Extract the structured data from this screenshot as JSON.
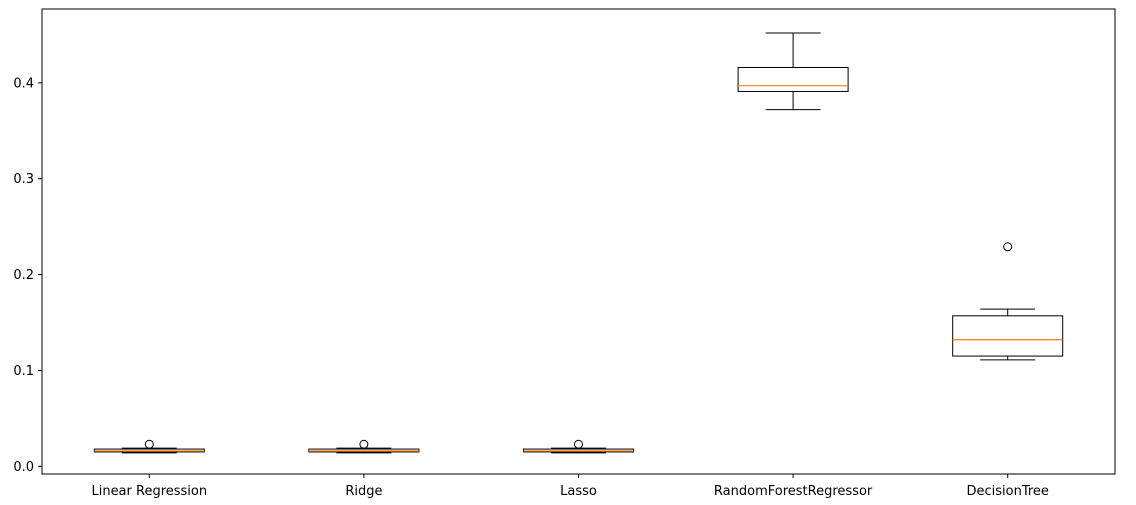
{
  "chart_data": {
    "type": "box",
    "title": "",
    "xlabel": "",
    "ylabel": "",
    "ylim": [
      -0.008,
      0.477
    ],
    "yticks": [
      0.0,
      0.1,
      0.2,
      0.3,
      0.4
    ],
    "ytick_labels": [
      "0.0",
      "0.1",
      "0.2",
      "0.3",
      "0.4"
    ],
    "categories": [
      "Linear Regression",
      "Ridge",
      "Lasso",
      "RandomForestRegressor",
      "DecisionTree"
    ],
    "boxes": [
      {
        "whisker_low": 0.014,
        "q1": 0.015,
        "median": 0.016,
        "q3": 0.018,
        "whisker_high": 0.019,
        "outliers": [
          0.023
        ]
      },
      {
        "whisker_low": 0.014,
        "q1": 0.015,
        "median": 0.016,
        "q3": 0.018,
        "whisker_high": 0.019,
        "outliers": [
          0.023
        ]
      },
      {
        "whisker_low": 0.014,
        "q1": 0.015,
        "median": 0.016,
        "q3": 0.018,
        "whisker_high": 0.019,
        "outliers": [
          0.023
        ]
      },
      {
        "whisker_low": 0.372,
        "q1": 0.391,
        "median": 0.397,
        "q3": 0.416,
        "whisker_high": 0.452,
        "outliers": []
      },
      {
        "whisker_low": 0.111,
        "q1": 0.115,
        "median": 0.132,
        "q3": 0.157,
        "whisker_high": 0.164,
        "outliers": [
          0.229
        ]
      }
    ],
    "colors": {
      "box": "#000000",
      "median": "#ff7f0e",
      "background": "#ffffff"
    }
  }
}
